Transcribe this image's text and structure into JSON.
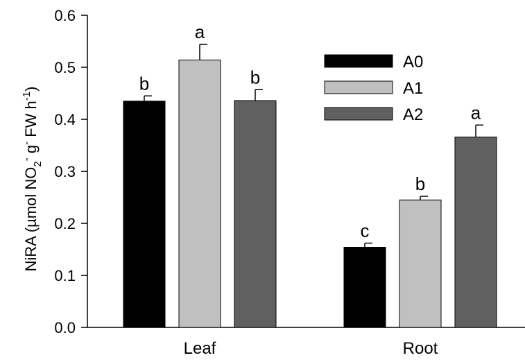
{
  "chart_data": {
    "type": "bar",
    "categories": [
      "Leaf",
      "Root"
    ],
    "series": [
      {
        "name": "A0",
        "values": [
          0.435,
          0.154
        ],
        "errors": [
          0.01,
          0.008
        ],
        "letters": [
          "b",
          "c"
        ],
        "color": "#000000"
      },
      {
        "name": "A1",
        "values": [
          0.514,
          0.245
        ],
        "errors": [
          0.03,
          0.007
        ],
        "letters": [
          "a",
          "b"
        ],
        "color": "#c0c0c0"
      },
      {
        "name": "A2",
        "values": [
          0.436,
          0.366
        ],
        "errors": [
          0.021,
          0.023
        ],
        "letters": [
          "b",
          "a"
        ],
        "color": "#606060"
      }
    ],
    "ylabel": {
      "prefix": "NiRA (µmol NO",
      "sub": "2",
      "sup1": "-",
      "middle": " g",
      "sup2": "-",
      "suffix": " FW h",
      "sup3": "-1",
      "close": ")"
    },
    "ylim": [
      0,
      0.6
    ],
    "yticks": [
      "0.0",
      "0.1",
      "0.2",
      "0.3",
      "0.4",
      "0.5",
      "0.6"
    ],
    "grid": false,
    "legend_position": "top-right"
  }
}
